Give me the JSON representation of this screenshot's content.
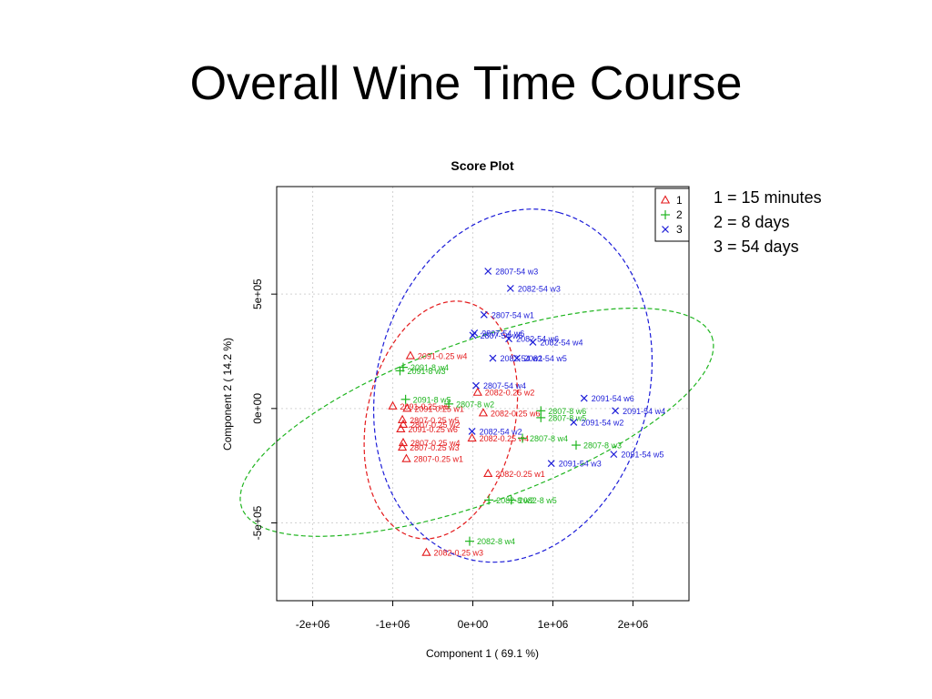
{
  "slide": {
    "title": "Overall Wine Time Course",
    "notes": [
      "1 = 15 minutes",
      "2 = 8 days",
      "3 = 54 days"
    ]
  },
  "chart_data": {
    "type": "scatter",
    "title": "Score Plot",
    "xlabel": "Component 1 ( 69.1 %)",
    "ylabel": "Component 2 ( 14.2 %)",
    "xlim": [
      -2450000,
      2700000
    ],
    "ylim": [
      -840000,
      970000
    ],
    "xticks": [
      -2000000,
      -1000000,
      0,
      1000000,
      2000000
    ],
    "xtick_labels": [
      "-2e+06",
      "-1e+06",
      "0e+00",
      "1e+06",
      "2e+06"
    ],
    "yticks": [
      -500000,
      0,
      500000
    ],
    "ytick_labels": [
      "-5e+05",
      "0e+00",
      "5e+05"
    ],
    "grid": true,
    "legend_position": "top-right",
    "series": [
      {
        "name": "1",
        "color": "#e41a1c",
        "marker": "triangle",
        "ellipse": {
          "cx": -400000,
          "cy": -50000,
          "rx": 780000,
          "ry": 480000,
          "angle": -78
        },
        "points": [
          {
            "x": -780000,
            "y": 230000,
            "label": "2091-0.25 w4"
          },
          {
            "x": 60000,
            "y": 70000,
            "label": "2082-0.25 w2"
          },
          {
            "x": -1000000,
            "y": 10000,
            "label": "2091-0.25 w5"
          },
          {
            "x": -820000,
            "y": 0,
            "label": "2091-0.25 w1"
          },
          {
            "x": -880000,
            "y": -50000,
            "label": "2807-0.25 w5"
          },
          {
            "x": -870000,
            "y": -70000,
            "label": "2807-0.25 w2"
          },
          {
            "x": -900000,
            "y": -90000,
            "label": "2091-0.25 w6"
          },
          {
            "x": 130000,
            "y": -20000,
            "label": "2082-0.25 w6"
          },
          {
            "x": -10000,
            "y": -130000,
            "label": "2082-0.25 w4"
          },
          {
            "x": -870000,
            "y": -150000,
            "label": "2807-0.25 w4"
          },
          {
            "x": -880000,
            "y": -170000,
            "label": "2807-0.25 w3"
          },
          {
            "x": -830000,
            "y": -220000,
            "label": "2807-0.25 w1"
          },
          {
            "x": 190000,
            "y": -285000,
            "label": "2082-0.25 w1"
          },
          {
            "x": -580000,
            "y": -630000,
            "label": "2082-0.25 w3"
          }
        ]
      },
      {
        "name": "2",
        "color": "#1fb51f",
        "marker": "plus",
        "ellipse": {
          "cx": 50000,
          "cy": -60000,
          "rx": 1620000,
          "ry": 520000,
          "angle": -20
        },
        "points": [
          {
            "x": -870000,
            "y": 180000,
            "label": "2091-8 w4"
          },
          {
            "x": -910000,
            "y": 165000,
            "label": "2091-8 w3"
          },
          {
            "x": -840000,
            "y": 40000,
            "label": "2091-8 w5"
          },
          {
            "x": -300000,
            "y": 20000,
            "label": "2807-8 w2"
          },
          {
            "x": 850000,
            "y": -10000,
            "label": "2807-8 w6"
          },
          {
            "x": 850000,
            "y": -40000,
            "label": "2807-8 w5"
          },
          {
            "x": 620000,
            "y": -130000,
            "label": "2807-8 w4"
          },
          {
            "x": 1290000,
            "y": -160000,
            "label": "2807-8 w3"
          },
          {
            "x": 480000,
            "y": -400000,
            "label": "2082-8 w5"
          },
          {
            "x": 200000,
            "y": -400000,
            "label": "2082-8 w2"
          },
          {
            "x": -40000,
            "y": -580000,
            "label": "2082-8 w4"
          }
        ]
      },
      {
        "name": "3",
        "color": "#1c1cd8",
        "marker": "cross",
        "ellipse": {
          "cx": 500000,
          "cy": 100000,
          "rx": 1160000,
          "ry": 880000,
          "angle": -75
        },
        "points": [
          {
            "x": 190000,
            "y": 600000,
            "label": "2807-54 w3"
          },
          {
            "x": 470000,
            "y": 525000,
            "label": "2082-54 w3"
          },
          {
            "x": 140000,
            "y": 410000,
            "label": "2807-54 w1"
          },
          {
            "x": 20000,
            "y": 330000,
            "label": "2807-54 w6"
          },
          {
            "x": 0,
            "y": 320000,
            "label": "2807-54 w5"
          },
          {
            "x": 450000,
            "y": 305000,
            "label": "2082-54 w6"
          },
          {
            "x": 750000,
            "y": 290000,
            "label": "2082-54 w4"
          },
          {
            "x": 250000,
            "y": 220000,
            "label": "2082-54 w1"
          },
          {
            "x": 550000,
            "y": 220000,
            "label": "2082-54 w5"
          },
          {
            "x": 40000,
            "y": 100000,
            "label": "2807-54 w4"
          },
          {
            "x": 1390000,
            "y": 45000,
            "label": "2091-54 w6"
          },
          {
            "x": 1780000,
            "y": -10000,
            "label": "2091-54 w4"
          },
          {
            "x": 1260000,
            "y": -60000,
            "label": "2091-54 w2"
          },
          {
            "x": -10000,
            "y": -100000,
            "label": "2082-54 w2"
          },
          {
            "x": 1760000,
            "y": -200000,
            "label": "2091-54 w5"
          },
          {
            "x": 980000,
            "y": -240000,
            "label": "2091-54 w3"
          }
        ]
      }
    ]
  }
}
